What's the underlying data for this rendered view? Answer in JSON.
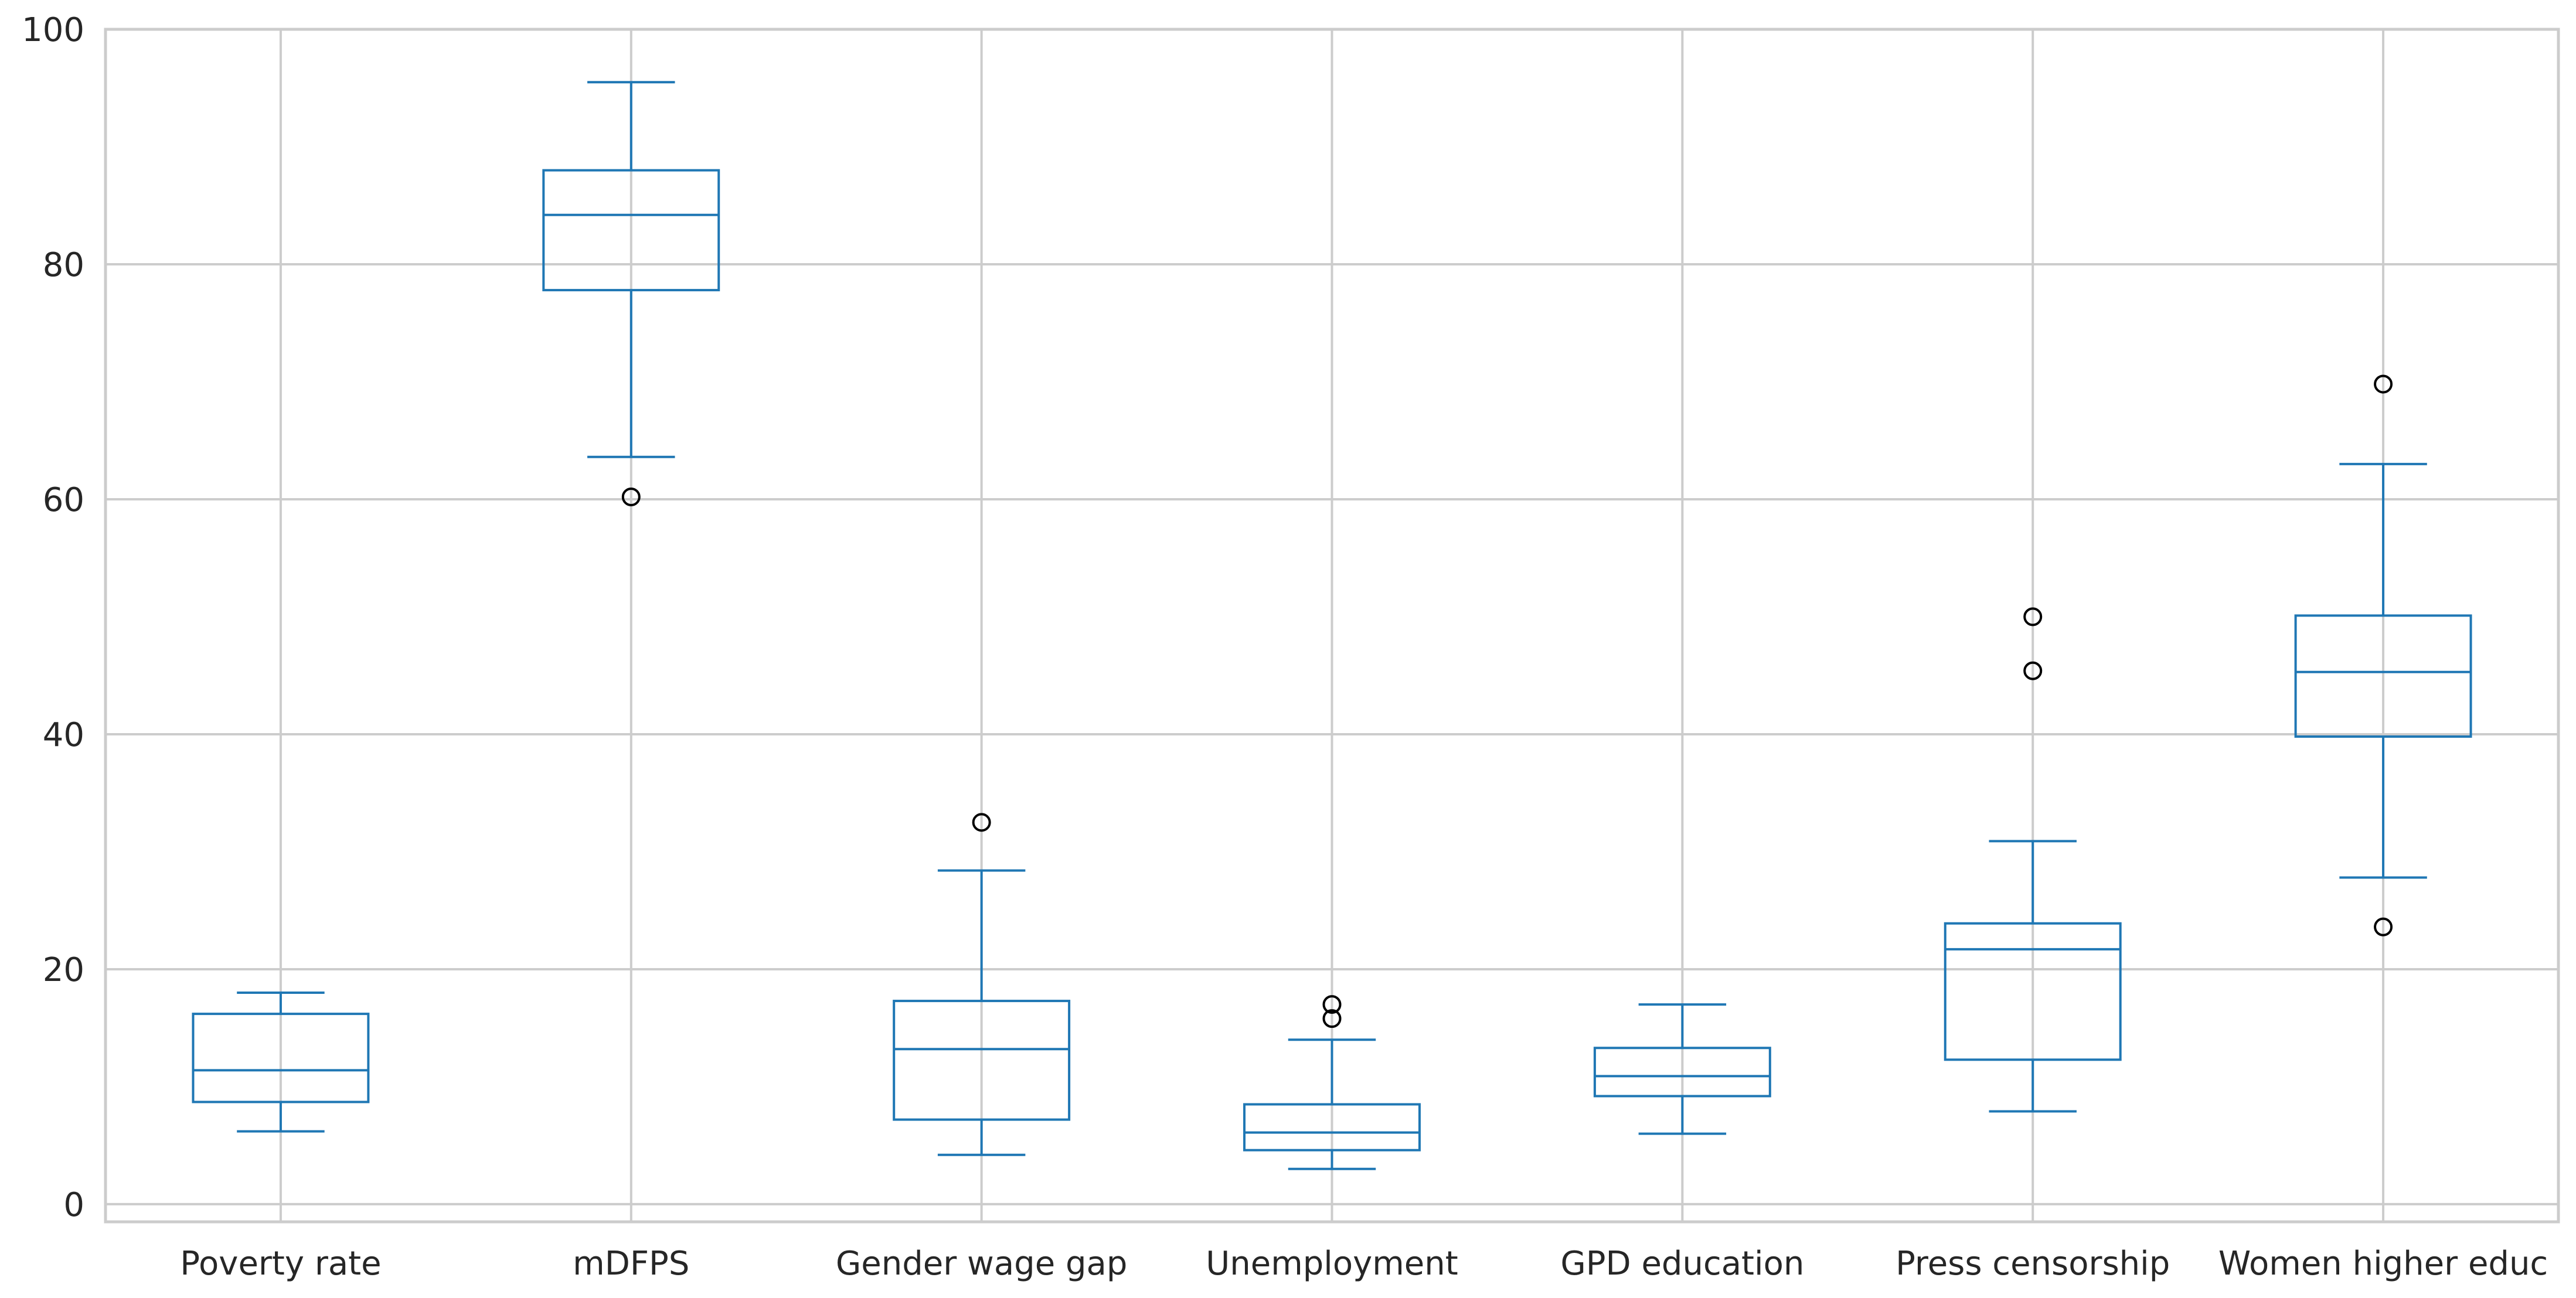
{
  "chart_data": {
    "type": "box",
    "title": "",
    "xlabel": "",
    "ylabel": "",
    "ylim": [
      -1.5,
      100
    ],
    "yticks": [
      0,
      20,
      40,
      60,
      80,
      100
    ],
    "grid": true,
    "categories": [
      "Poverty rate",
      "mDFPS",
      "Gender wage gap",
      "Unemployment",
      "GPD education",
      "Press censorship",
      "Women higher educ"
    ],
    "boxes": [
      {
        "label": "Poverty rate",
        "whisker_low": 6.2,
        "q1": 8.7,
        "median": 11.4,
        "q3": 16.2,
        "whisker_high": 18.0,
        "outliers": []
      },
      {
        "label": "mDFPS",
        "whisker_low": 63.6,
        "q1": 77.8,
        "median": 84.2,
        "q3": 88.0,
        "whisker_high": 95.5,
        "outliers": [
          60.2
        ]
      },
      {
        "label": "Gender wage gap",
        "whisker_low": 4.2,
        "q1": 7.2,
        "median": 13.2,
        "q3": 17.3,
        "whisker_high": 28.4,
        "outliers": [
          32.5
        ]
      },
      {
        "label": "Unemployment",
        "whisker_low": 3.0,
        "q1": 4.6,
        "median": 6.1,
        "q3": 8.5,
        "whisker_high": 14.0,
        "outliers": [
          15.8,
          17.0
        ]
      },
      {
        "label": "GPD education",
        "whisker_low": 6.0,
        "q1": 9.2,
        "median": 10.9,
        "q3": 13.3,
        "whisker_high": 17.0,
        "outliers": []
      },
      {
        "label": "Press censorship",
        "whisker_low": 7.9,
        "q1": 12.3,
        "median": 21.7,
        "q3": 23.9,
        "whisker_high": 30.9,
        "outliers": [
          45.4,
          50.0
        ]
      },
      {
        "label": "Women higher educ",
        "whisker_low": 27.8,
        "q1": 39.8,
        "median": 45.3,
        "q3": 50.1,
        "whisker_high": 63.0,
        "outliers": [
          23.6,
          69.8
        ]
      }
    ],
    "colors": {
      "box": "#1f77b4",
      "grid": "#cccccc",
      "text": "#262626",
      "outlier": "#000000"
    }
  }
}
